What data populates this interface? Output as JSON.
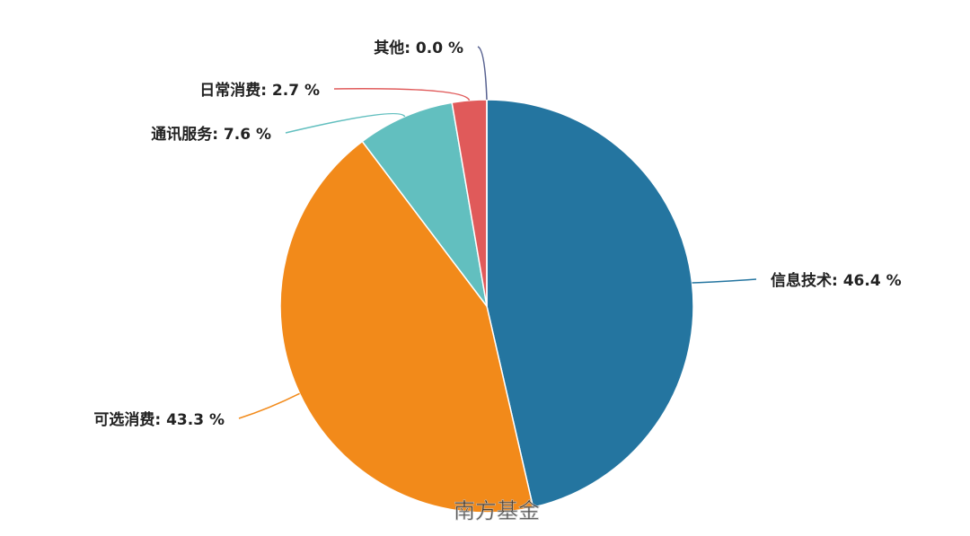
{
  "chart_data": {
    "type": "pie",
    "values": [
      46.4,
      43.3,
      7.6,
      2.7,
      0.0
    ],
    "value_labels": [
      "信息技术: 46.4 %",
      "可选消费: 43.3 %",
      "通讯服务: 7.6 %",
      "日常消费: 2.7 %",
      "其他: 0.0 %"
    ],
    "colors": [
      "#2475a0",
      "#f28a1a",
      "#62bfbf",
      "#e05a5a",
      "#56608f"
    ],
    "watermark": "南方基金"
  }
}
